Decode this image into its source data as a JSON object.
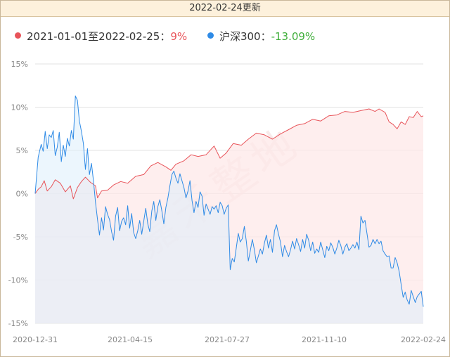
{
  "header": {
    "title": "2022-02-24更新"
  },
  "legend": {
    "items": [
      {
        "label": "2021-01-01至2022-02-25：",
        "value": "9%",
        "color": "#e8545a",
        "value_color": "#e8545a"
      },
      {
        "label": "沪深300：",
        "value": "-13.09%",
        "color": "#2f8be6",
        "value_color": "#3fae3a"
      }
    ]
  },
  "watermark": "嘉禾整地",
  "chart_data": {
    "type": "area",
    "title": "",
    "xlabel": "",
    "ylabel": "",
    "ylim": [
      -15,
      15
    ],
    "y_ticks": [
      "15%",
      "10%",
      "5%",
      "0%",
      "-5%",
      "-10%",
      "-15%"
    ],
    "x_ticks": [
      "2020-12-31",
      "2021-04-15",
      "2021-07-27",
      "2021-11-10",
      "2022-02-24"
    ],
    "grid": true,
    "series": [
      {
        "name": "2021-01-01至2022-02-25",
        "color": "#e8545a",
        "fill": "#fde8e8",
        "points": [
          [
            0,
            0
          ],
          [
            3,
            0.5
          ],
          [
            6,
            0.8
          ],
          [
            9,
            1.5
          ],
          [
            12,
            0.3
          ],
          [
            16,
            0.8
          ],
          [
            20,
            1.6
          ],
          [
            25,
            1.2
          ],
          [
            30,
            0.2
          ],
          [
            35,
            0.9
          ],
          [
            38,
            -0.6
          ],
          [
            42,
            0.7
          ],
          [
            46,
            1.4
          ],
          [
            50,
            1.9
          ],
          [
            55,
            1.3
          ],
          [
            60,
            0.9
          ],
          [
            62,
            -0.5
          ],
          [
            66,
            0.3
          ],
          [
            72,
            0.4
          ],
          [
            78,
            1.0
          ],
          [
            85,
            1.4
          ],
          [
            92,
            1.2
          ],
          [
            100,
            2.0
          ],
          [
            108,
            2.2
          ],
          [
            115,
            3.2
          ],
          [
            122,
            3.6
          ],
          [
            130,
            3.1
          ],
          [
            135,
            2.7
          ],
          [
            140,
            3.4
          ],
          [
            148,
            3.8
          ],
          [
            155,
            4.5
          ],
          [
            162,
            4.3
          ],
          [
            170,
            4.5
          ],
          [
            178,
            5.5
          ],
          [
            184,
            4.1
          ],
          [
            190,
            4.7
          ],
          [
            197,
            5.8
          ],
          [
            205,
            5.6
          ],
          [
            212,
            6.3
          ],
          [
            220,
            7.0
          ],
          [
            228,
            6.8
          ],
          [
            236,
            6.3
          ],
          [
            244,
            6.9
          ],
          [
            252,
            7.4
          ],
          [
            260,
            7.9
          ],
          [
            268,
            8.1
          ],
          [
            276,
            8.6
          ],
          [
            284,
            8.4
          ],
          [
            292,
            9.0
          ],
          [
            300,
            9.1
          ],
          [
            308,
            9.5
          ],
          [
            316,
            9.4
          ],
          [
            324,
            9.6
          ],
          [
            332,
            9.8
          ],
          [
            338,
            9.5
          ],
          [
            342,
            9.8
          ],
          [
            348,
            9.4
          ],
          [
            352,
            8.3
          ],
          [
            356,
            8.0
          ],
          [
            360,
            7.5
          ],
          [
            364,
            8.3
          ],
          [
            368,
            8.0
          ],
          [
            372,
            8.9
          ],
          [
            376,
            8.8
          ],
          [
            380,
            9.5
          ],
          [
            384,
            8.9
          ],
          [
            386,
            9.0
          ]
        ]
      },
      {
        "name": "沪深300",
        "color": "#2f8be6",
        "fill": "#dceffb",
        "points": [
          [
            0,
            0
          ],
          [
            3,
            4.2
          ],
          [
            6,
            5.7
          ],
          [
            8,
            4.9
          ],
          [
            10,
            7.2
          ],
          [
            12,
            5.2
          ],
          [
            14,
            6.8
          ],
          [
            16,
            6.5
          ],
          [
            18,
            7.3
          ],
          [
            20,
            4.4
          ],
          [
            22,
            5.4
          ],
          [
            24,
            7.1
          ],
          [
            26,
            3.7
          ],
          [
            28,
            5.6
          ],
          [
            30,
            4.3
          ],
          [
            32,
            6.4
          ],
          [
            34,
            5.5
          ],
          [
            36,
            7.3
          ],
          [
            38,
            6.3
          ],
          [
            40,
            11.3
          ],
          [
            42,
            10.8
          ],
          [
            44,
            8.4
          ],
          [
            46,
            7.2
          ],
          [
            48,
            5.8
          ],
          [
            50,
            2.8
          ],
          [
            52,
            5.2
          ],
          [
            54,
            2.2
          ],
          [
            56,
            3.5
          ],
          [
            58,
            1.5
          ],
          [
            60,
            -1.0
          ],
          [
            62,
            -3.0
          ],
          [
            64,
            -4.8
          ],
          [
            66,
            -2.8
          ],
          [
            68,
            -4.2
          ],
          [
            70,
            -1.5
          ],
          [
            72,
            -2.4
          ],
          [
            74,
            -3.0
          ],
          [
            76,
            -4.4
          ],
          [
            78,
            -5.4
          ],
          [
            80,
            -2.6
          ],
          [
            82,
            -1.6
          ],
          [
            84,
            -4.3
          ],
          [
            86,
            -3.2
          ],
          [
            88,
            -2.8
          ],
          [
            90,
            -3.6
          ],
          [
            92,
            -1.4
          ],
          [
            94,
            -4.0
          ],
          [
            96,
            -2.3
          ],
          [
            98,
            -4.5
          ],
          [
            100,
            -5.2
          ],
          [
            102,
            -4.3
          ],
          [
            104,
            -3.1
          ],
          [
            106,
            -4.7
          ],
          [
            108,
            -3.2
          ],
          [
            110,
            -1.7
          ],
          [
            112,
            -3.5
          ],
          [
            114,
            -4.4
          ],
          [
            116,
            -2.0
          ],
          [
            118,
            -0.9
          ],
          [
            120,
            -3.1
          ],
          [
            122,
            -1.5
          ],
          [
            124,
            -0.7
          ],
          [
            126,
            -2.0
          ],
          [
            128,
            -3.5
          ],
          [
            130,
            -1.6
          ],
          [
            132,
            -0.5
          ],
          [
            134,
            0.9
          ],
          [
            136,
            2.2
          ],
          [
            138,
            2.6
          ],
          [
            140,
            1.8
          ],
          [
            142,
            1.2
          ],
          [
            144,
            2.3
          ],
          [
            146,
            1.5
          ],
          [
            148,
            0.7
          ],
          [
            150,
            -0.5
          ],
          [
            152,
            0.3
          ],
          [
            154,
            1.5
          ],
          [
            156,
            -0.8
          ],
          [
            158,
            -2.2
          ],
          [
            160,
            -0.9
          ],
          [
            162,
            -1.6
          ],
          [
            164,
            0.2
          ],
          [
            166,
            -0.3
          ],
          [
            168,
            -2.5
          ],
          [
            170,
            -1.2
          ],
          [
            172,
            -1.8
          ],
          [
            174,
            -2.4
          ],
          [
            176,
            -1.5
          ],
          [
            178,
            -1.8
          ],
          [
            180,
            -1.4
          ],
          [
            182,
            -2.2
          ],
          [
            184,
            -1.0
          ],
          [
            186,
            -1.4
          ],
          [
            188,
            -2.4
          ],
          [
            190,
            -1.7
          ],
          [
            192,
            -1.3
          ],
          [
            194,
            -8.8
          ],
          [
            196,
            -7.5
          ],
          [
            198,
            -7.9
          ],
          [
            200,
            -6.3
          ],
          [
            202,
            -4.6
          ],
          [
            204,
            -5.6
          ],
          [
            206,
            -5.2
          ],
          [
            208,
            -3.8
          ],
          [
            210,
            -5.5
          ],
          [
            212,
            -7.8
          ],
          [
            214,
            -6.6
          ],
          [
            216,
            -5.3
          ],
          [
            218,
            -6.5
          ],
          [
            220,
            -8.0
          ],
          [
            222,
            -7.2
          ],
          [
            224,
            -6.4
          ],
          [
            226,
            -7.0
          ],
          [
            228,
            -5.7
          ],
          [
            230,
            -4.8
          ],
          [
            232,
            -6.3
          ],
          [
            234,
            -5.3
          ],
          [
            236,
            -6.8
          ],
          [
            238,
            -4.3
          ],
          [
            240,
            -3.6
          ],
          [
            242,
            -4.7
          ],
          [
            244,
            -5.6
          ],
          [
            246,
            -7.3
          ],
          [
            248,
            -6.0
          ],
          [
            250,
            -6.7
          ],
          [
            252,
            -7.3
          ],
          [
            254,
            -6.5
          ],
          [
            256,
            -5.5
          ],
          [
            258,
            -6.4
          ],
          [
            260,
            -5.2
          ],
          [
            262,
            -5.9
          ],
          [
            264,
            -6.7
          ],
          [
            266,
            -5.3
          ],
          [
            268,
            -6.3
          ],
          [
            270,
            -4.7
          ],
          [
            272,
            -5.4
          ],
          [
            274,
            -6.6
          ],
          [
            276,
            -5.6
          ],
          [
            278,
            -6.9
          ],
          [
            280,
            -6.4
          ],
          [
            282,
            -6.8
          ],
          [
            284,
            -5.6
          ],
          [
            286,
            -6.5
          ],
          [
            288,
            -7.4
          ],
          [
            290,
            -6.1
          ],
          [
            292,
            -6.6
          ],
          [
            294,
            -5.7
          ],
          [
            296,
            -6.2
          ],
          [
            298,
            -7.0
          ],
          [
            300,
            -6.3
          ],
          [
            302,
            -5.4
          ],
          [
            304,
            -6.0
          ],
          [
            306,
            -7.0
          ],
          [
            308,
            -6.2
          ],
          [
            310,
            -5.8
          ],
          [
            312,
            -6.6
          ],
          [
            314,
            -6.3
          ],
          [
            316,
            -5.9
          ],
          [
            318,
            -6.3
          ],
          [
            320,
            -5.6
          ],
          [
            322,
            -6.5
          ],
          [
            324,
            -2.6
          ],
          [
            326,
            -3.4
          ],
          [
            328,
            -3.1
          ],
          [
            330,
            -4.6
          ],
          [
            332,
            -6.2
          ],
          [
            334,
            -6.0
          ],
          [
            336,
            -5.3
          ],
          [
            338,
            -5.8
          ],
          [
            340,
            -5.3
          ],
          [
            342,
            -5.8
          ],
          [
            344,
            -5.5
          ],
          [
            346,
            -6.6
          ],
          [
            348,
            -7.0
          ],
          [
            350,
            -7.3
          ],
          [
            352,
            -7.2
          ],
          [
            354,
            -8.6
          ],
          [
            356,
            -8.6
          ],
          [
            358,
            -7.4
          ],
          [
            360,
            -8.0
          ],
          [
            362,
            -9.0
          ],
          [
            364,
            -10.5
          ],
          [
            366,
            -12.0
          ],
          [
            368,
            -11.4
          ],
          [
            370,
            -12.3
          ],
          [
            372,
            -12.8
          ],
          [
            374,
            -11.2
          ],
          [
            376,
            -11.9
          ],
          [
            378,
            -12.6
          ],
          [
            380,
            -11.9
          ],
          [
            382,
            -11.6
          ],
          [
            384,
            -11.3
          ],
          [
            386,
            -13.09
          ]
        ]
      }
    ]
  }
}
